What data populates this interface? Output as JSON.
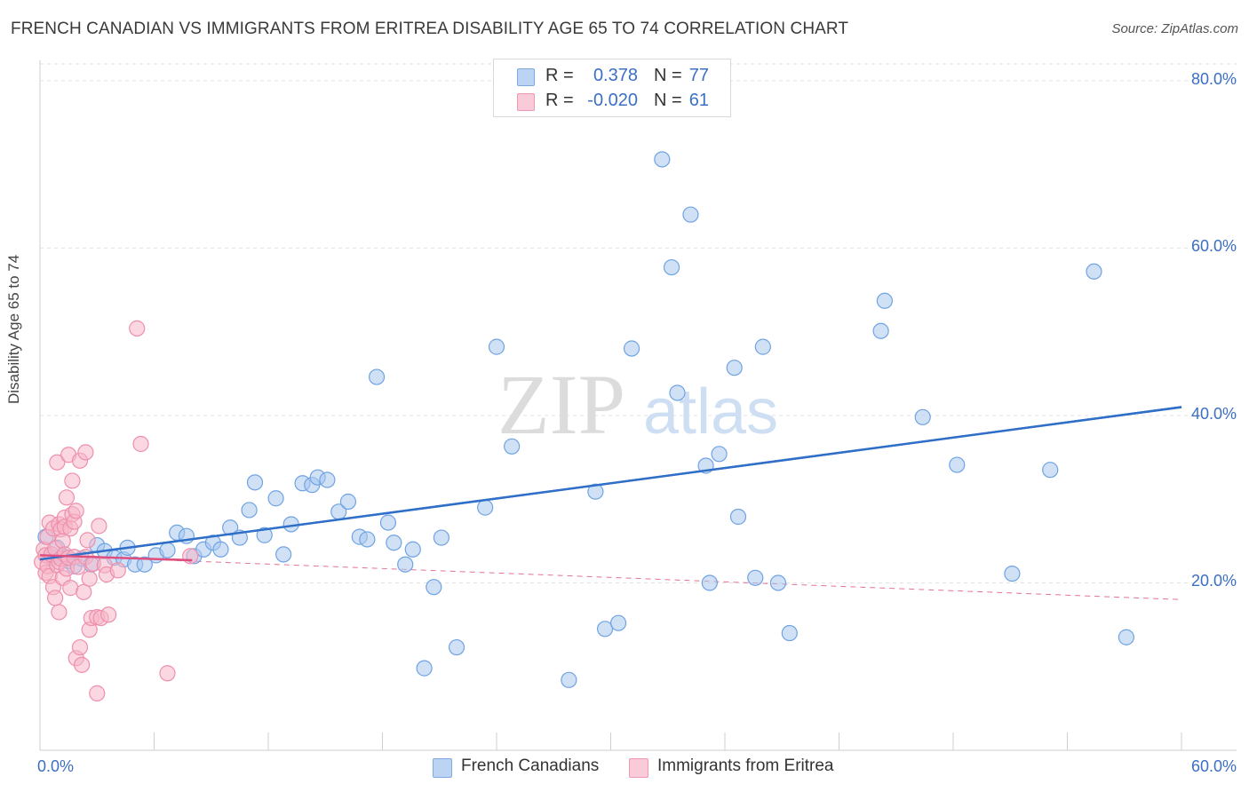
{
  "title": "FRENCH CANADIAN VS IMMIGRANTS FROM ERITREA DISABILITY AGE 65 TO 74 CORRELATION CHART",
  "source": "Source: ZipAtlas.com",
  "watermark": {
    "zip": "ZIP",
    "atlas": "atlas"
  },
  "legend_top": {
    "rows": [
      {
        "r_label": "R =",
        "r_value": "0.378",
        "n_label": "N =",
        "n_value": "77",
        "color": "#a9c8ef"
      },
      {
        "r_label": "R =",
        "r_value": "-0.020",
        "n_label": "N =",
        "n_value": "61",
        "color": "#f6b6c9"
      }
    ]
  },
  "legend_bottom": [
    {
      "label": "French Canadians",
      "color": "#a9c8ef"
    },
    {
      "label": "Immigrants from Eritrea",
      "color": "#f6b6c9"
    }
  ],
  "chart_data": {
    "type": "scatter",
    "title": "FRENCH CANADIAN VS IMMIGRANTS FROM ERITREA DISABILITY AGE 65 TO 74 CORRELATION CHART",
    "xlabel": "",
    "ylabel": "Disability Age 65 to 74",
    "xlim": [
      0,
      60
    ],
    "ylim": [
      0,
      82
    ],
    "x_tick_labels": [
      "0.0%",
      "60.0%"
    ],
    "y_ticks": [
      20,
      40,
      60,
      80
    ],
    "y_tick_labels": [
      "20.0%",
      "40.0%",
      "60.0%",
      "80.0%"
    ],
    "grid": true,
    "legend_position": "top-center",
    "series": [
      {
        "name": "French Canadians",
        "color": "#6fa3e3",
        "fill": "#a9c8ef",
        "trend": {
          "x": [
            0,
            60
          ],
          "y": [
            22.8,
            41.0
          ],
          "color": "#2f6fc8",
          "style": "solid"
        },
        "points": [
          [
            0.3,
            25.5
          ],
          [
            0.6,
            23.0
          ],
          [
            0.9,
            24.2
          ],
          [
            1.2,
            23.2
          ],
          [
            1.5,
            22.6
          ],
          [
            1.8,
            22.0
          ],
          [
            2.2,
            22.9
          ],
          [
            2.7,
            22.2
          ],
          [
            3.0,
            24.5
          ],
          [
            3.4,
            23.8
          ],
          [
            3.9,
            23.0
          ],
          [
            4.4,
            22.8
          ],
          [
            4.6,
            24.2
          ],
          [
            5.0,
            22.2
          ],
          [
            5.5,
            22.2
          ],
          [
            6.1,
            23.3
          ],
          [
            6.7,
            23.9
          ],
          [
            7.2,
            26.0
          ],
          [
            7.7,
            25.6
          ],
          [
            8.1,
            23.2
          ],
          [
            8.6,
            24.0
          ],
          [
            9.1,
            24.8
          ],
          [
            9.5,
            24.0
          ],
          [
            10.0,
            26.6
          ],
          [
            10.5,
            25.4
          ],
          [
            11.0,
            28.7
          ],
          [
            11.3,
            32.0
          ],
          [
            11.8,
            25.7
          ],
          [
            12.4,
            30.1
          ],
          [
            12.8,
            23.4
          ],
          [
            13.2,
            27.0
          ],
          [
            13.8,
            31.9
          ],
          [
            14.3,
            31.7
          ],
          [
            14.6,
            32.6
          ],
          [
            15.1,
            32.3
          ],
          [
            15.7,
            28.5
          ],
          [
            16.2,
            29.7
          ],
          [
            16.8,
            25.5
          ],
          [
            17.2,
            25.2
          ],
          [
            17.7,
            44.6
          ],
          [
            18.3,
            27.2
          ],
          [
            18.6,
            24.8
          ],
          [
            19.2,
            22.2
          ],
          [
            19.6,
            24.0
          ],
          [
            20.2,
            9.8
          ],
          [
            20.7,
            19.5
          ],
          [
            21.1,
            25.4
          ],
          [
            21.9,
            12.3
          ],
          [
            23.4,
            29.0
          ],
          [
            24.0,
            48.2
          ],
          [
            24.8,
            36.3
          ],
          [
            27.8,
            8.4
          ],
          [
            29.2,
            30.9
          ],
          [
            29.7,
            14.5
          ],
          [
            30.4,
            15.2
          ],
          [
            31.1,
            48.0
          ],
          [
            32.7,
            70.6
          ],
          [
            33.2,
            57.7
          ],
          [
            33.5,
            42.7
          ],
          [
            34.2,
            64.0
          ],
          [
            35.0,
            34.0
          ],
          [
            35.2,
            20.0
          ],
          [
            35.7,
            35.4
          ],
          [
            36.5,
            45.7
          ],
          [
            36.7,
            27.9
          ],
          [
            37.6,
            20.6
          ],
          [
            38.0,
            48.2
          ],
          [
            38.8,
            20.0
          ],
          [
            39.4,
            14.0
          ],
          [
            44.2,
            50.1
          ],
          [
            44.4,
            53.7
          ],
          [
            46.4,
            39.8
          ],
          [
            48.2,
            34.1
          ],
          [
            51.1,
            21.1
          ],
          [
            53.1,
            33.5
          ],
          [
            55.4,
            57.2
          ],
          [
            57.1,
            13.5
          ]
        ]
      },
      {
        "name": "Immigrants from Eritrea",
        "color": "#ee8fac",
        "fill": "#f6b6c9",
        "trend": {
          "x": [
            0,
            8
          ],
          "y": [
            23.3,
            22.7
          ],
          "color": "#de4f80",
          "style": "solid",
          "extended": {
            "x": [
              0,
              60
            ],
            "y": [
              23.3,
              18.0
            ],
            "style": "dashed"
          }
        },
        "points": [
          [
            0.1,
            22.5
          ],
          [
            0.2,
            24.0
          ],
          [
            0.3,
            21.2
          ],
          [
            0.3,
            23.3
          ],
          [
            0.4,
            25.5
          ],
          [
            0.4,
            22.0
          ],
          [
            0.5,
            20.8
          ],
          [
            0.5,
            27.2
          ],
          [
            0.6,
            23.4
          ],
          [
            0.7,
            26.5
          ],
          [
            0.7,
            19.5
          ],
          [
            0.8,
            18.2
          ],
          [
            0.8,
            24.1
          ],
          [
            0.9,
            22.1
          ],
          [
            0.9,
            34.4
          ],
          [
            1.0,
            27.0
          ],
          [
            1.0,
            22.5
          ],
          [
            1.0,
            16.5
          ],
          [
            1.1,
            26.4
          ],
          [
            1.1,
            22.9
          ],
          [
            1.2,
            20.6
          ],
          [
            1.2,
            25.0
          ],
          [
            1.3,
            27.8
          ],
          [
            1.3,
            23.4
          ],
          [
            1.3,
            26.7
          ],
          [
            1.4,
            21.7
          ],
          [
            1.4,
            30.2
          ],
          [
            1.5,
            35.3
          ],
          [
            1.5,
            23.0
          ],
          [
            1.6,
            26.5
          ],
          [
            1.6,
            19.4
          ],
          [
            1.7,
            28.2
          ],
          [
            1.7,
            32.2
          ],
          [
            1.8,
            27.3
          ],
          [
            1.8,
            23.1
          ],
          [
            1.9,
            11.0
          ],
          [
            1.9,
            28.6
          ],
          [
            2.0,
            21.9
          ],
          [
            2.1,
            12.3
          ],
          [
            2.1,
            34.6
          ],
          [
            2.2,
            10.2
          ],
          [
            2.3,
            18.9
          ],
          [
            2.4,
            35.6
          ],
          [
            2.4,
            23.1
          ],
          [
            2.5,
            25.1
          ],
          [
            2.6,
            20.5
          ],
          [
            2.6,
            14.4
          ],
          [
            2.7,
            15.8
          ],
          [
            2.8,
            22.3
          ],
          [
            3.0,
            6.8
          ],
          [
            3.0,
            15.9
          ],
          [
            3.1,
            26.8
          ],
          [
            3.2,
            15.8
          ],
          [
            3.4,
            22.1
          ],
          [
            3.5,
            21.0
          ],
          [
            3.6,
            16.2
          ],
          [
            4.1,
            21.5
          ],
          [
            5.1,
            50.4
          ],
          [
            5.3,
            36.6
          ],
          [
            6.7,
            9.2
          ],
          [
            7.9,
            23.2
          ]
        ]
      }
    ]
  }
}
